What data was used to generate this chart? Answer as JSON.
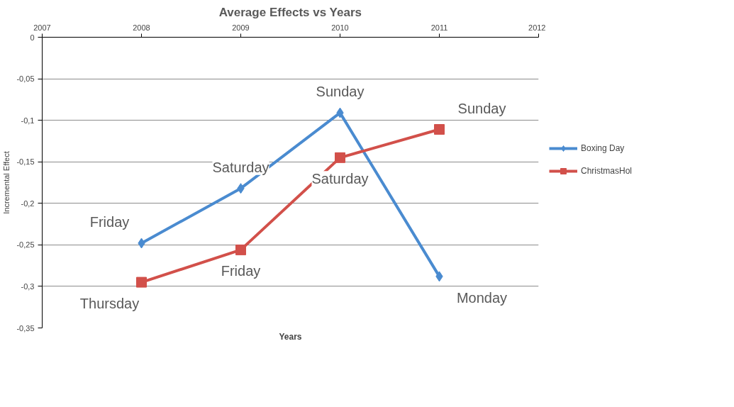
{
  "chart_data": {
    "type": "line",
    "title": "Average Effects vs Years",
    "xlabel": "Years",
    "ylabel": "Incremental Effect",
    "x": [
      2008,
      2009,
      2010,
      2011
    ],
    "series": [
      {
        "name": "Boxing Day",
        "color": "#4a8bd0",
        "marker": "diamond",
        "values": [
          -0.248,
          -0.182,
          -0.091,
          -0.288
        ]
      },
      {
        "name": "ChristmasHol",
        "color": "#d2504a",
        "marker": "square",
        "values": [
          -0.295,
          -0.256,
          -0.145,
          -0.111
        ]
      }
    ],
    "xlim": [
      2007,
      2012
    ],
    "xticks": [
      2007,
      2008,
      2009,
      2010,
      2011,
      2012
    ],
    "ylim": [
      -0.35,
      0
    ],
    "yticks": [
      {
        "value": 0,
        "label": "0"
      },
      {
        "value": -0.05,
        "label": "-0,05"
      },
      {
        "value": -0.1,
        "label": "-0,1"
      },
      {
        "value": -0.15,
        "label": "-0,15"
      },
      {
        "value": -0.2,
        "label": "-0,2"
      },
      {
        "value": -0.25,
        "label": "-0,25"
      },
      {
        "value": -0.3,
        "label": "-0,3"
      },
      {
        "value": -0.35,
        "label": "-0,35"
      }
    ],
    "grid": "y",
    "legend": "right",
    "line_style": "solid",
    "annotations": [
      {
        "text": "Friday",
        "x": 2008,
        "y": -0.248
      },
      {
        "text": "Saturday",
        "x": 2009,
        "y": -0.182
      },
      {
        "text": "Sunday",
        "x": 2010,
        "y": -0.091
      },
      {
        "text": "Monday",
        "x": 2011,
        "y": -0.288
      },
      {
        "text": "Thursday",
        "x": 2008,
        "y": -0.295
      },
      {
        "text": "Friday",
        "x": 2009,
        "y": -0.256
      },
      {
        "text": "Saturday",
        "x": 2010,
        "y": -0.145
      },
      {
        "text": "Sunday",
        "x": 2011,
        "y": -0.111
      }
    ]
  }
}
